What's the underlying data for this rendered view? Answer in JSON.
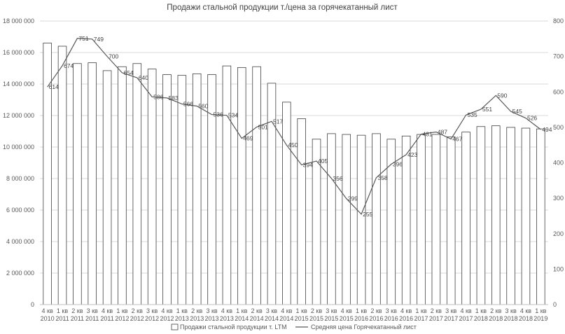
{
  "chart_data": {
    "type": "bar",
    "title": "Продажи стальной продукции т./цена за горячекатанный лист",
    "categories": [
      [
        "4 кв",
        "2010"
      ],
      [
        "1 кв",
        "2011"
      ],
      [
        "2 кв",
        "2011"
      ],
      [
        "3 кв",
        "2011"
      ],
      [
        "4 кв",
        "2011"
      ],
      [
        "1 кв",
        "2012"
      ],
      [
        "2 кв",
        "2012"
      ],
      [
        "3 кв",
        "2012"
      ],
      [
        "4 кв",
        "2012"
      ],
      [
        "1 кв",
        "2013"
      ],
      [
        "2 кв",
        "2013"
      ],
      [
        "3 кв",
        "2013"
      ],
      [
        "4 кв",
        "2013"
      ],
      [
        "1 кв",
        "2014"
      ],
      [
        "2 кв",
        "2014"
      ],
      [
        "3 кв",
        "2014"
      ],
      [
        "4 кв",
        "2014"
      ],
      [
        "1 кв",
        "2015"
      ],
      [
        "2 кв",
        "2015"
      ],
      [
        "3 кв",
        "2015"
      ],
      [
        "4 кв",
        "2015"
      ],
      [
        "1 кв",
        "2016"
      ],
      [
        "2 кв",
        "2016"
      ],
      [
        "3 кв",
        "2016"
      ],
      [
        "4 кв",
        "2016"
      ],
      [
        "1 кв",
        "2017"
      ],
      [
        "2 кв",
        "2017"
      ],
      [
        "3 кв",
        "2017"
      ],
      [
        "4 кв",
        "2017"
      ],
      [
        "1 кв",
        "2018"
      ],
      [
        "2 кв",
        "2018"
      ],
      [
        "3 кв",
        "2018"
      ],
      [
        "4 кв",
        "2018"
      ],
      [
        "1 кв",
        "2019"
      ]
    ],
    "series": [
      {
        "name": "Продажи стальной продукции т. LTM",
        "type": "bar",
        "axis": "left",
        "values": [
          16600000,
          16400000,
          15300000,
          15350000,
          14850000,
          15100000,
          15300000,
          14950000,
          14600000,
          14550000,
          14650000,
          14600000,
          15150000,
          15050000,
          15100000,
          14050000,
          12850000,
          11800000,
          10500000,
          10850000,
          10800000,
          10750000,
          10850000,
          10500000,
          10700000,
          10800000,
          10800000,
          10650000,
          10950000,
          11300000,
          11350000,
          11250000,
          11200000,
          11150000
        ]
      },
      {
        "name": "Средняя цена Горячекатанный лист",
        "type": "line",
        "axis": "right",
        "values": [
          614,
          674,
          751,
          749,
          700,
          654,
          640,
          586,
          583,
          566,
          560,
          536,
          534,
          469,
          501,
          517,
          450,
          394,
          405,
          356,
          299,
          255,
          358,
          396,
          423,
          481,
          487,
          467,
          535,
          551,
          590,
          545,
          526,
          494
        ]
      }
    ],
    "y_left": {
      "min": 0,
      "max": 18000000,
      "step": 2000000,
      "tick_labels": [
        "0",
        "2 000 000",
        "4 000 000",
        "6 000 000",
        "8 000 000",
        "10 000 000",
        "12 000 000",
        "14 000 000",
        "16 000 000",
        "18 000 000"
      ]
    },
    "y_right": {
      "min": 0,
      "max": 800,
      "step": 100,
      "tick_labels": [
        "0",
        "100",
        "200",
        "300",
        "400",
        "500",
        "600",
        "700",
        "800"
      ]
    },
    "grid": true,
    "legend_position": "bottom"
  }
}
